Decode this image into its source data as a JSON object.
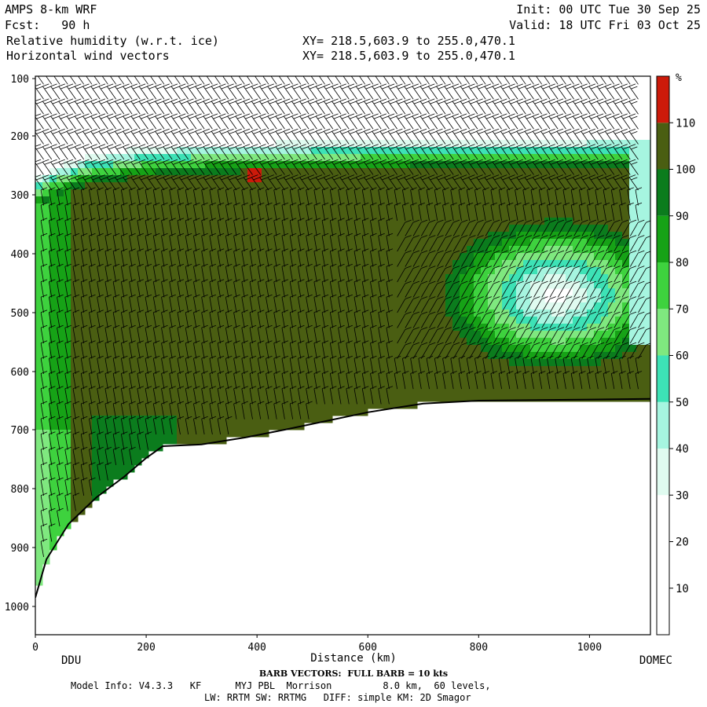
{
  "header": {
    "model_title": "AMPS 8-km WRF",
    "forecast_hour": "Fcst:   90 h",
    "init_time": "Init: 00 UTC Tue 30 Sep 25",
    "valid_time": "Valid: 18 UTC Fri 03 Oct 25",
    "field_1": "Relative humidity (w.r.t. ice)",
    "field_2": "Horizontal wind vectors",
    "xsec_1": "XY= 218.5,603.9 to 255.0,470.1",
    "xsec_2": "XY= 218.5,603.9 to 255.0,470.1"
  },
  "chart_data": {
    "type": "heatmap",
    "title": "Relative humidity (w.r.t. ice)",
    "xlabel": "Distance (km)",
    "ylabel": "",
    "xlim": [
      0,
      1110
    ],
    "ylim": [
      1050,
      100
    ],
    "y_scale": "pressure (log-like, inverted)",
    "x_ticks": [
      0,
      200,
      400,
      600,
      800,
      1000
    ],
    "y_ticks": [
      100,
      200,
      300,
      400,
      500,
      600,
      700,
      800,
      900,
      1000
    ],
    "x_endpoints": {
      "left": "DDU",
      "right": "DOMEC"
    },
    "colorbar": {
      "unit": "%",
      "levels": [
        10,
        20,
        30,
        40,
        50,
        60,
        70,
        80,
        90,
        100,
        110
      ],
      "colors": [
        "#ffffff",
        "#ffffff",
        "#ffffff",
        "#e0fbf0",
        "#a6f5e0",
        "#3de2b6",
        "#7fe87f",
        "#3ed23e",
        "#16a216",
        "#0b7c1d",
        "#4a5e12",
        "#cc1a0a"
      ]
    },
    "terrain_surface": [
      {
        "x": 0,
        "p": 985
      },
      {
        "x": 20,
        "p": 920
      },
      {
        "x": 60,
        "p": 860
      },
      {
        "x": 110,
        "p": 815
      },
      {
        "x": 160,
        "p": 780
      },
      {
        "x": 200,
        "p": 748
      },
      {
        "x": 230,
        "p": 728
      },
      {
        "x": 300,
        "p": 725
      },
      {
        "x": 380,
        "p": 713
      },
      {
        "x": 450,
        "p": 700
      },
      {
        "x": 500,
        "p": 690
      },
      {
        "x": 600,
        "p": 670
      },
      {
        "x": 700,
        "p": 655
      },
      {
        "x": 800,
        "p": 650
      },
      {
        "x": 1110,
        "p": 647
      }
    ],
    "moist_layer_top": [
      {
        "x": 0,
        "p": 320
      },
      {
        "x": 40,
        "p": 300
      },
      {
        "x": 100,
        "p": 280
      },
      {
        "x": 200,
        "p": 268
      },
      {
        "x": 300,
        "p": 262
      },
      {
        "x": 500,
        "p": 258
      },
      {
        "x": 700,
        "p": 255
      },
      {
        "x": 1080,
        "p": 252
      }
    ],
    "dry_pocket": {
      "x_range": [
        690,
        1110
      ],
      "p_range": [
        280,
        580
      ],
      "min_rh": 20
    },
    "supersaturation_spot": {
      "x": 395,
      "p": 265,
      "rh": 112
    },
    "wind_barb_note": "BARB VECTORS:  FULL BARB = 10 kts"
  },
  "footer": {
    "barb_note": "BARB VECTORS:  FULL BARB = 10 kts",
    "model_info": "Model Info: V4.3.3   KF      MYJ PBL  Morrison         8.0 km,  60 levels,",
    "physics": "LW: RRTM SW: RRTMG   DIFF: simple KM: 2D Smagor"
  }
}
